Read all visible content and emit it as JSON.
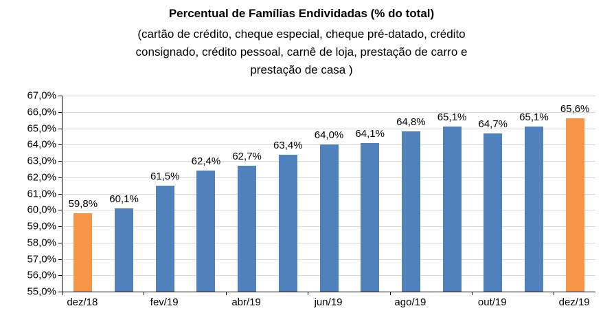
{
  "chart_data": {
    "type": "bar",
    "title": "Percentual de Famílias Endividadas (% do total)",
    "subtitle_lines": [
      "(cartão de crédito, cheque especial, cheque pré-datado, crédito",
      "consignado, crédito pessoal, carnê de loja, prestação de carro e",
      "prestação de casa )"
    ],
    "values": [
      59.8,
      60.1,
      61.5,
      62.4,
      62.7,
      63.4,
      64.0,
      64.1,
      64.8,
      65.1,
      64.7,
      65.1,
      65.6
    ],
    "value_labels": [
      "59,8%",
      "60,1%",
      "61,5%",
      "62,4%",
      "62,7%",
      "63,4%",
      "64,0%",
      "64,1%",
      "64,8%",
      "65,1%",
      "64,7%",
      "65,1%",
      "65,6%"
    ],
    "x_tick_labels": [
      "dez/18",
      "",
      "fev/19",
      "",
      "abr/19",
      "",
      "jun/19",
      "",
      "ago/19",
      "",
      "out/19",
      "",
      "dez/19"
    ],
    "y_ticks": [
      "67,0%",
      "66,0%",
      "65,0%",
      "64,0%",
      "63,0%",
      "62,0%",
      "61,0%",
      "60,0%",
      "59,0%",
      "58,0%",
      "57,0%",
      "56,0%",
      "55,0%"
    ],
    "ylim": [
      55.0,
      67.0
    ],
    "y_step": 1.0,
    "highlight_indices": [
      0,
      12
    ],
    "grid": true,
    "legend": "none",
    "colors": {
      "default_bar": "#4F81BD",
      "highlight_bar": "#F79646",
      "gridline": "#D9D9D9",
      "axis": "#000000",
      "text": "#000000"
    }
  }
}
